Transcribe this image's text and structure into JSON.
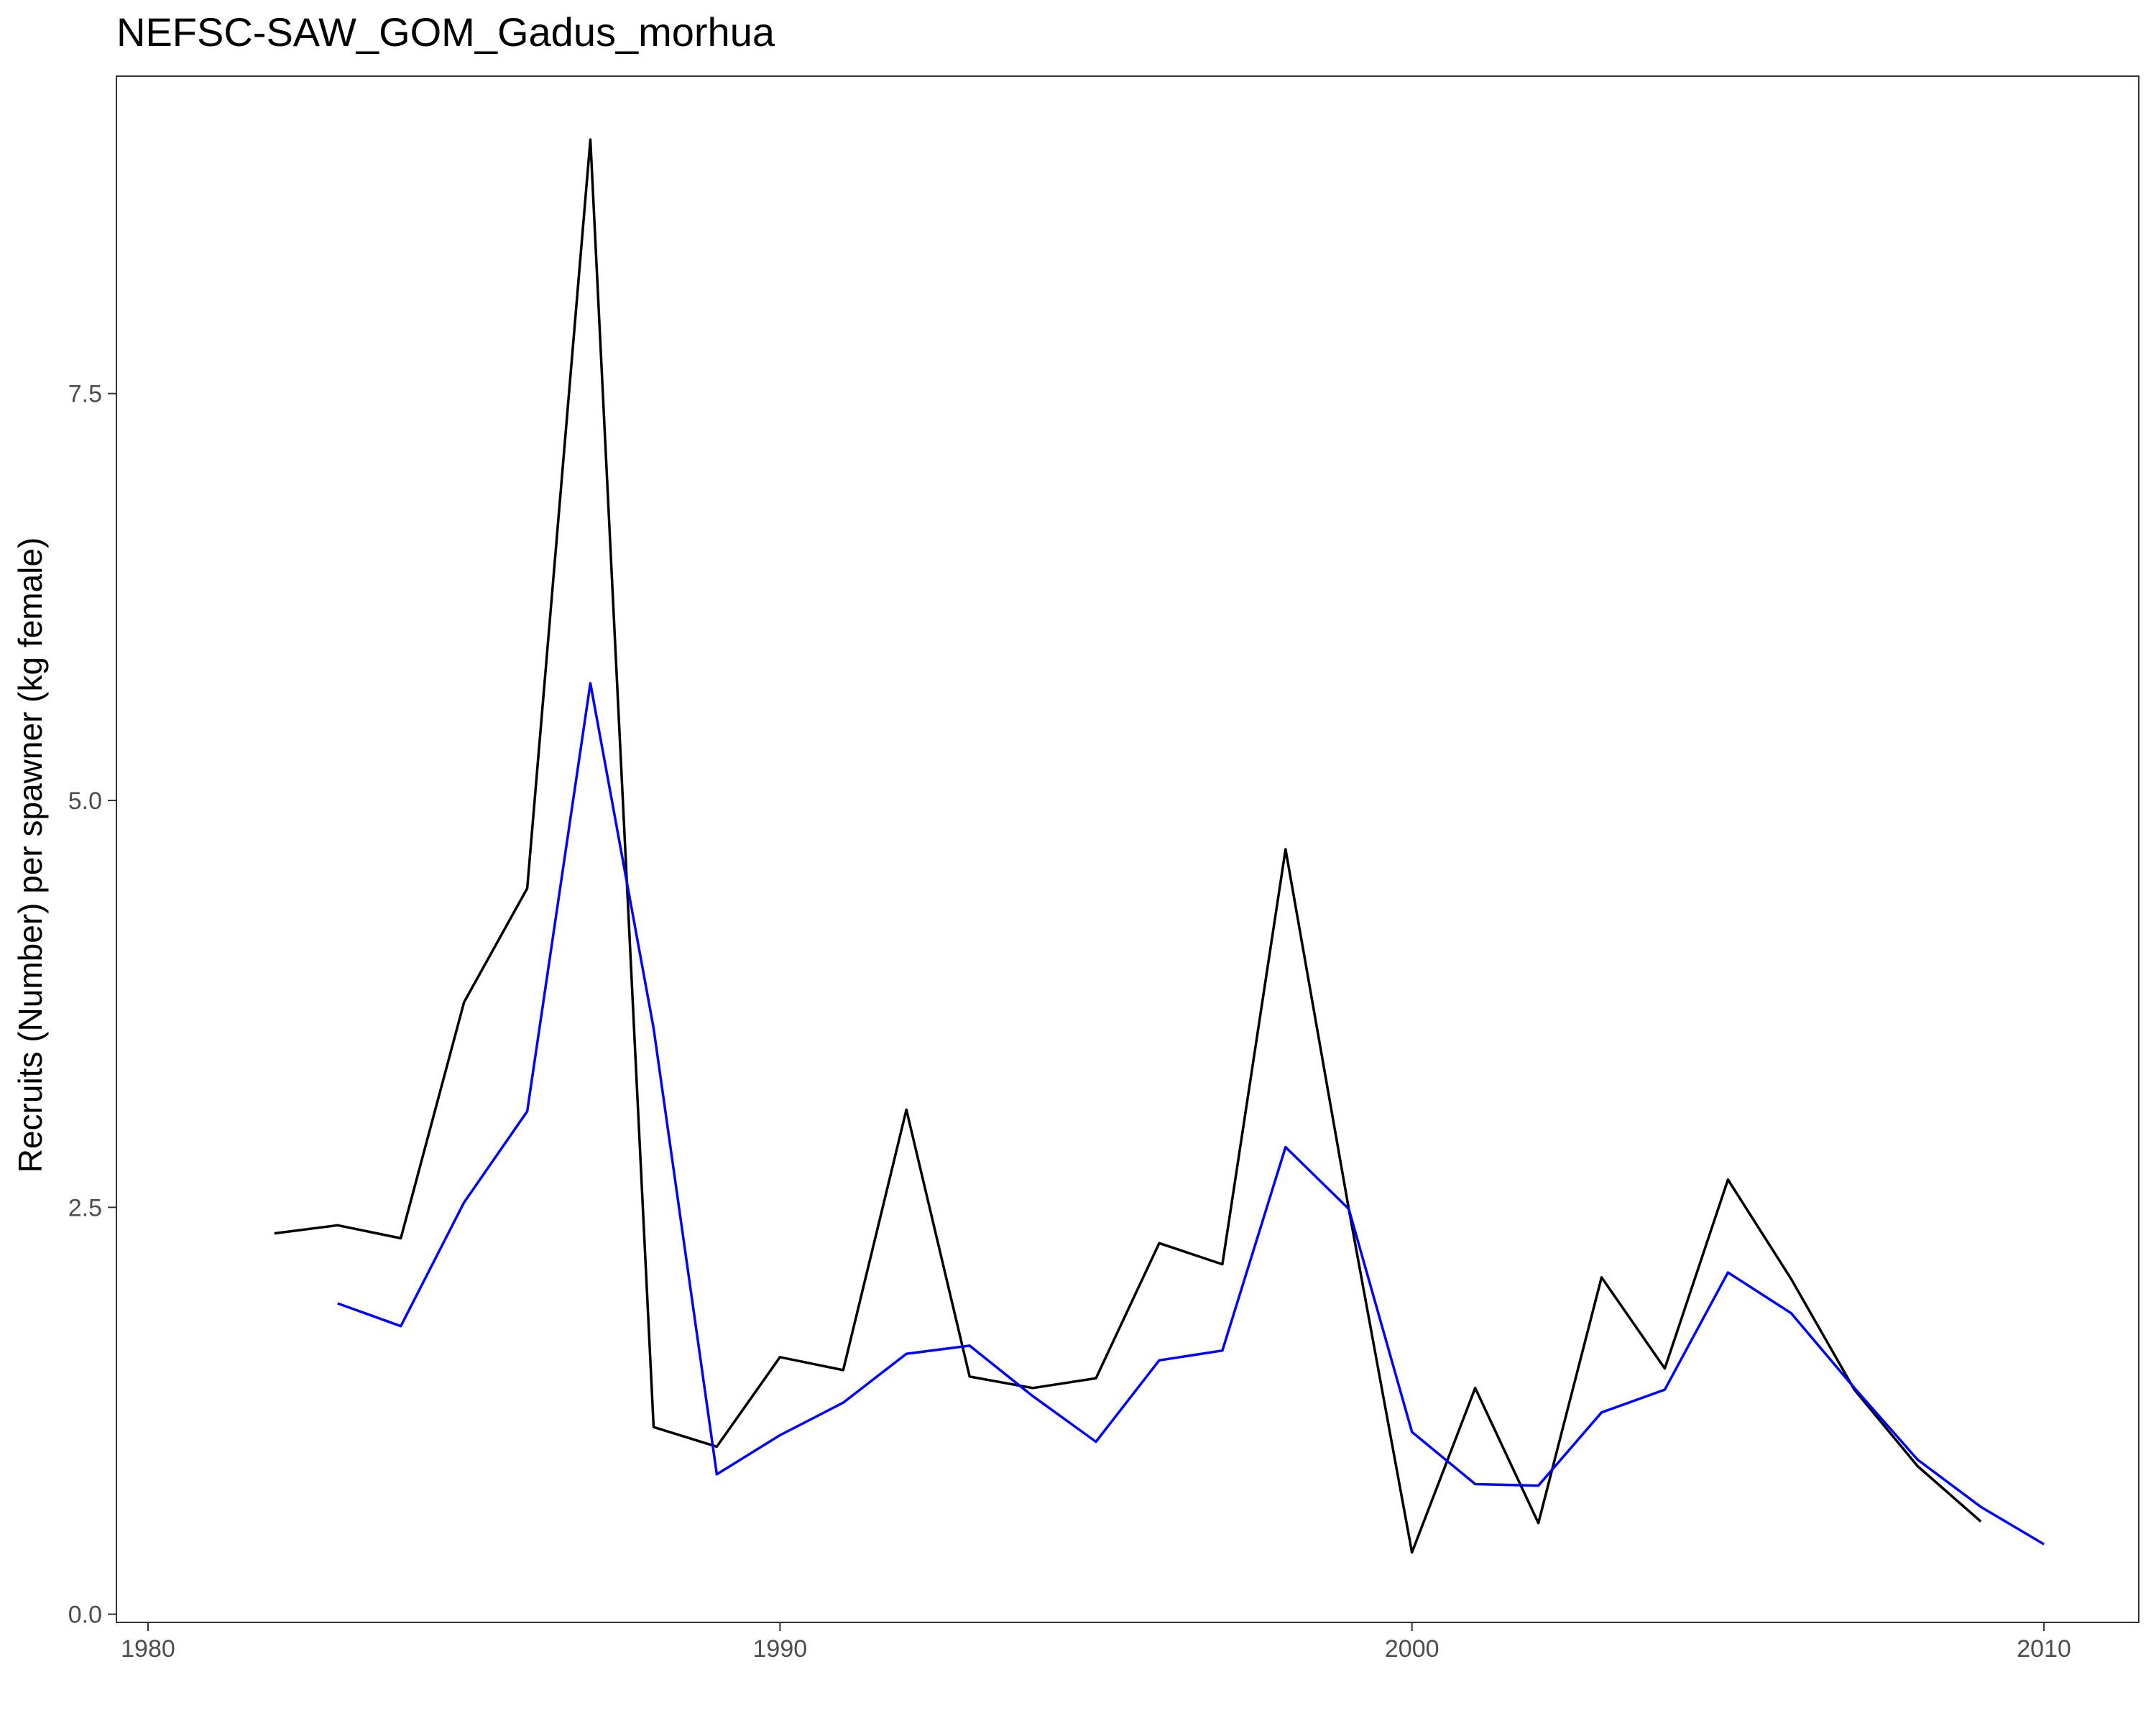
{
  "chart_data": {
    "type": "line",
    "title": "NEFSC-SAW_GOM_Gadus_morhua",
    "xlabel": "",
    "ylabel": "Recruits (Number) per spawner (kg female)",
    "xlim": [
      1979.5,
      2011.5
    ],
    "ylim": [
      -0.05,
      9.45
    ],
    "x_ticks": [
      1980,
      1990,
      2000,
      2010
    ],
    "x_tick_labels": [
      "1980",
      "1990",
      "2000",
      "2010"
    ],
    "y_ticks": [
      0.0,
      2.5,
      5.0,
      7.5
    ],
    "y_tick_labels": [
      "0.0",
      "2.5",
      "5.0",
      "7.5"
    ],
    "grid": false,
    "series": [
      {
        "color": "#000000",
        "x": [
          1982,
          1983,
          1984,
          1985,
          1986,
          1987,
          1988,
          1989,
          1990,
          1991,
          1992,
          1993,
          1994,
          1995,
          1996,
          1997,
          1998,
          1999,
          2000,
          2001,
          2002,
          2003,
          2004,
          2005,
          2006,
          2007,
          2008,
          2009
        ],
        "values": [
          2.34,
          2.39,
          2.31,
          3.76,
          4.46,
          9.06,
          1.15,
          1.03,
          1.58,
          1.5,
          3.1,
          1.46,
          1.39,
          1.45,
          2.28,
          2.15,
          4.7,
          2.49,
          0.38,
          1.39,
          0.56,
          2.07,
          1.51,
          2.67,
          2.06,
          1.38,
          0.91,
          0.57
        ]
      },
      {
        "color": "#0000ff",
        "x": [
          1983,
          1984,
          1985,
          1986,
          1987,
          1988,
          1989,
          1990,
          1991,
          1992,
          1993,
          1994,
          1995,
          1996,
          1997,
          1998,
          1999,
          2000,
          2001,
          2002,
          2003,
          2004,
          2005,
          2006,
          2007,
          2008,
          2009,
          2010
        ],
        "values": [
          1.91,
          1.77,
          2.53,
          3.09,
          5.72,
          3.6,
          0.86,
          1.1,
          1.3,
          1.6,
          1.65,
          1.34,
          1.06,
          1.56,
          1.62,
          2.87,
          2.49,
          1.12,
          0.8,
          0.79,
          1.24,
          1.38,
          2.1,
          1.85,
          1.39,
          0.95,
          0.66,
          0.43
        ]
      }
    ]
  }
}
